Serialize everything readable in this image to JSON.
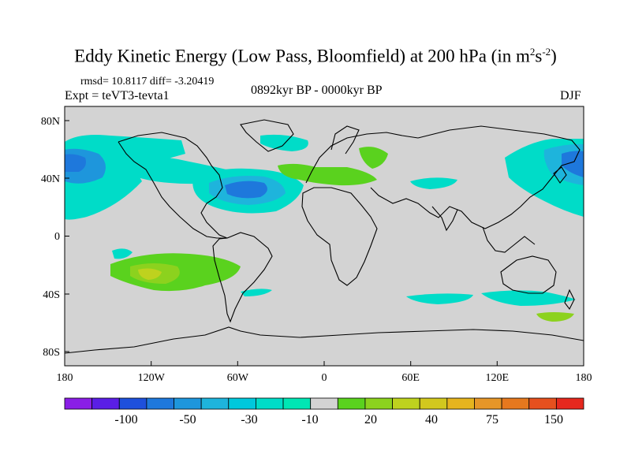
{
  "title": {
    "text": "Eddy Kinetic Energy (Low Pass, Bloomfield) at 200 hPa (in m",
    "sup1": "2",
    "mid": "s",
    "sup2": "-2",
    "end": ")"
  },
  "stats": "rmsd= 10.8117 diff= -3.20419",
  "experiment": "Expt = teVT3-tevta1",
  "period": "0892kyr BP - 0000kyr BP",
  "season": "DJF",
  "map": {
    "projection": "cylindrical-equidistant",
    "lon_range": [
      -180,
      180
    ],
    "lat_range": [
      -90,
      90
    ],
    "background_color": "#d3d3d3",
    "lon_ticks": [
      "180",
      "120W",
      "60W",
      "0",
      "60E",
      "120E",
      "180"
    ],
    "lat_ticks": [
      "80N",
      "40N",
      "0",
      "40S",
      "80S"
    ],
    "anomaly_regions": [
      {
        "region": "North Pacific storm track",
        "sign": "negative",
        "color": "#00e6c8"
      },
      {
        "region": "North Atlantic",
        "sign": "negative",
        "color": "#1e90dc"
      },
      {
        "region": "Mediterranean / Eastern Europe",
        "sign": "positive",
        "color": "#5ad21e"
      },
      {
        "region": "South Pacific",
        "sign": "positive",
        "color": "#8cd21e"
      },
      {
        "region": "Southern Ocean",
        "sign": "negative",
        "color": "#00e6c8"
      }
    ]
  },
  "colorbar": {
    "colors": [
      "#8a1ee6",
      "#5a1ee6",
      "#1e50dc",
      "#1e78dc",
      "#1e96dc",
      "#1eb4dc",
      "#00c8dc",
      "#00dcc8",
      "#00e6b4",
      "#d3d3d3",
      "#5ad21e",
      "#8cd21e",
      "#bed21e",
      "#d2c81e",
      "#e6b41e",
      "#e69628",
      "#e6781e",
      "#e6501e",
      "#e6281e"
    ],
    "labels": [
      "-100",
      "-50",
      "-30",
      "-10",
      "20",
      "40",
      "75",
      "150"
    ]
  }
}
